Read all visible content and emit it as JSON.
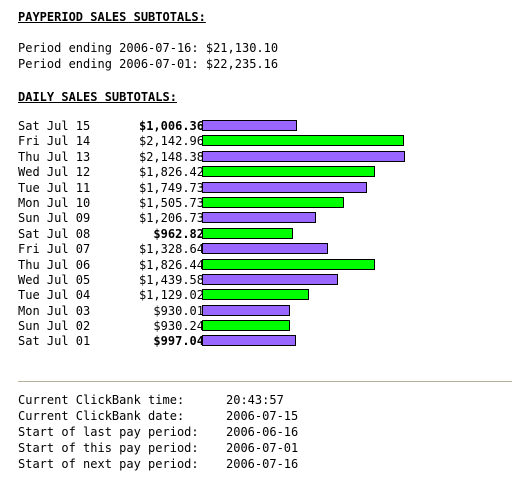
{
  "payperiod_heading": "PAYPERIOD SALES SUBTOTALS:",
  "periods": [
    "Period ending 2006-07-16: $21,130.10",
    "Period ending 2006-07-01: $22,235.16"
  ],
  "daily_heading": "DAILY SALES SUBTOTALS:",
  "colors": {
    "weekend_bar": "#9966ff",
    "weekday_bar": "#00ff00",
    "divider": "#b8b09a"
  },
  "daily_max_value": 2148.38,
  "daily": [
    {
      "day": "Sat Jul 15",
      "amount": "$1,006.36",
      "value": 1006.36,
      "bold": true,
      "bar": "weekend"
    },
    {
      "day": "Fri Jul 14",
      "amount": "$2,142.96",
      "value": 2142.96,
      "bold": false,
      "bar": "weekday"
    },
    {
      "day": "Thu Jul 13",
      "amount": "$2,148.38",
      "value": 2148.38,
      "bold": false,
      "bar": "weekend"
    },
    {
      "day": "Wed Jul 12",
      "amount": "$1,826.42",
      "value": 1826.42,
      "bold": false,
      "bar": "weekday"
    },
    {
      "day": "Tue Jul 11",
      "amount": "$1,749.73",
      "value": 1749.73,
      "bold": false,
      "bar": "weekend"
    },
    {
      "day": "Mon Jul 10",
      "amount": "$1,505.73",
      "value": 1505.73,
      "bold": false,
      "bar": "weekday"
    },
    {
      "day": "Sun Jul 09",
      "amount": "$1,206.73",
      "value": 1206.73,
      "bold": false,
      "bar": "weekend"
    },
    {
      "day": "Sat Jul 08",
      "amount": "$962.82",
      "value": 962.82,
      "bold": true,
      "bar": "weekday"
    },
    {
      "day": "Fri Jul 07",
      "amount": "$1,328.64",
      "value": 1328.64,
      "bold": false,
      "bar": "weekend"
    },
    {
      "day": "Thu Jul 06",
      "amount": "$1,826.44",
      "value": 1826.44,
      "bold": false,
      "bar": "weekday"
    },
    {
      "day": "Wed Jul 05",
      "amount": "$1,439.58",
      "value": 1439.58,
      "bold": false,
      "bar": "weekend"
    },
    {
      "day": "Tue Jul 04",
      "amount": "$1,129.02",
      "value": 1129.02,
      "bold": false,
      "bar": "weekday"
    },
    {
      "day": "Mon Jul 03",
      "amount": "$930.01",
      "value": 930.01,
      "bold": false,
      "bar": "weekend"
    },
    {
      "day": "Sun Jul 02",
      "amount": "$930.24",
      "value": 930.24,
      "bold": false,
      "bar": "weekday"
    },
    {
      "day": "Sat Jul 01",
      "amount": "$997.04",
      "value": 997.04,
      "bold": true,
      "bar": "weekend"
    }
  ],
  "info": [
    {
      "label": "Current ClickBank time:",
      "value": "20:43:57"
    },
    {
      "label": "Current ClickBank date:",
      "value": "2006-07-15"
    },
    {
      "label": "Start of last pay period:",
      "value": "2006-06-16"
    },
    {
      "label": "Start of this pay period:",
      "value": "2006-07-01"
    },
    {
      "label": "Start of next pay period:",
      "value": "2006-07-16"
    }
  ]
}
